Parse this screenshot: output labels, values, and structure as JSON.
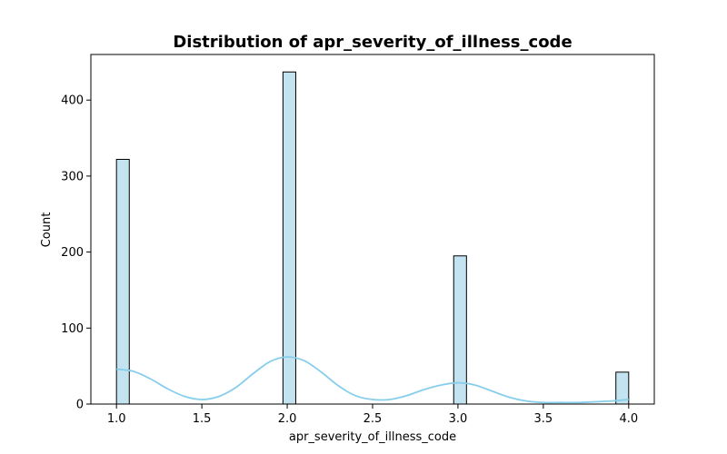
{
  "chart_data": {
    "type": "bar",
    "subtype": "histogram_with_kde",
    "title": "Distribution of apr_severity_of_illness_code",
    "xlabel": "apr_severity_of_illness_code",
    "ylabel": "Count",
    "xlim": [
      0.85,
      4.15
    ],
    "ylim": [
      0,
      460
    ],
    "xticks": [
      "1.0",
      "1.5",
      "2.0",
      "2.5",
      "3.0",
      "3.5",
      "4.0"
    ],
    "xtick_values": [
      1.0,
      1.5,
      2.0,
      2.5,
      3.0,
      3.5,
      4.0
    ],
    "yticks": [
      "0",
      "100",
      "200",
      "300",
      "400"
    ],
    "ytick_values": [
      0,
      100,
      200,
      300,
      400
    ],
    "bin_width": 0.075,
    "bins": [
      {
        "x0": 1.0,
        "x1": 1.075,
        "count": 322
      },
      {
        "x0": 1.975,
        "x1": 2.05,
        "count": 437
      },
      {
        "x0": 2.975,
        "x1": 3.05,
        "count": 195
      },
      {
        "x0": 3.925,
        "x1": 4.0,
        "count": 42
      }
    ],
    "kde": {
      "x": [
        1.0,
        1.1,
        1.2,
        1.3,
        1.4,
        1.5,
        1.6,
        1.7,
        1.8,
        1.9,
        2.0,
        2.1,
        2.2,
        2.3,
        2.4,
        2.5,
        2.6,
        2.7,
        2.8,
        2.9,
        3.0,
        3.1,
        3.2,
        3.3,
        3.4,
        3.5,
        3.6,
        3.7,
        3.8,
        3.9,
        4.0
      ],
      "y": [
        46,
        43,
        33,
        20,
        10,
        6,
        10,
        22,
        40,
        56,
        62,
        57,
        42,
        24,
        11,
        6,
        6,
        11,
        19,
        25,
        28,
        25,
        17,
        9,
        4,
        2,
        2,
        2,
        3,
        4,
        6
      ]
    },
    "colors": {
      "bar_fill": "#c4e3f0",
      "bar_edge": "#000000",
      "kde_line": "#87ceeb"
    },
    "grid": false,
    "legend": "none"
  }
}
